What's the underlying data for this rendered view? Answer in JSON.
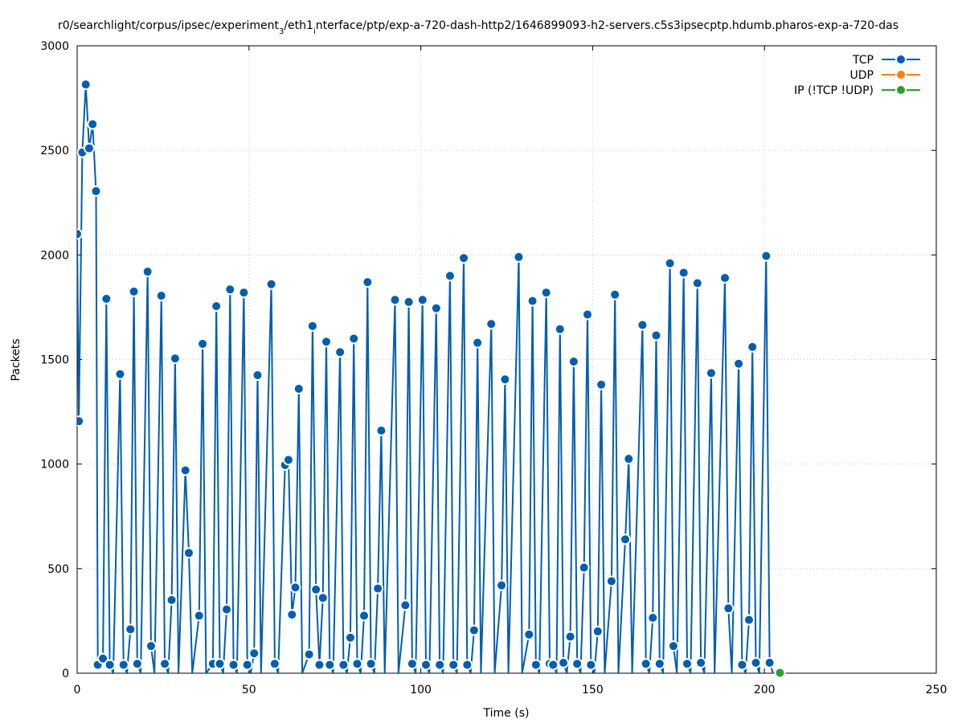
{
  "chart_data": {
    "type": "line",
    "title": "r0/searchlight/corpus/ipsec/experiment_3/eth1_interface/ptp/exp-a-720-dash-http2/1646899093-h2-servers.c5s3ipsecptp.hdumb.pharos-exp-a-720-das",
    "title_parts": {
      "part1": "r0/searchlight/corpus/ipsec/experiment",
      "sub1": "3",
      "part2": "/eth1",
      "sub2": "i",
      "part3": "nterface/ptp/exp-a-720-dash-http2/1646899093-h2-servers.c5s3ipsecptp.hdumb.pharos-exp-a-720-das"
    },
    "xlabel": "Time (s)",
    "ylabel": "Packets",
    "xlim": [
      0,
      250
    ],
    "ylim": [
      0,
      3000
    ],
    "xticks": [
      0,
      50,
      100,
      150,
      200,
      250
    ],
    "yticks": [
      0,
      500,
      1000,
      1500,
      2000,
      2500,
      3000
    ],
    "grid": true,
    "legend_position": "top-right",
    "series": [
      {
        "name": "TCP",
        "color": "#005eb0",
        "points": [
          [
            0,
            2100
          ],
          [
            0.5,
            1205
          ],
          [
            1.5,
            2490
          ],
          [
            2.5,
            2815
          ],
          [
            3.5,
            2510
          ],
          [
            4.5,
            2625
          ],
          [
            5.5,
            2305
          ],
          [
            6,
            40
          ],
          [
            7.5,
            70
          ],
          [
            8.5,
            1790
          ],
          [
            9.5,
            40
          ],
          [
            10.5,
            0
          ],
          [
            12.5,
            1430
          ],
          [
            13.5,
            40
          ],
          [
            14.5,
            0
          ],
          [
            15.5,
            210
          ],
          [
            16.5,
            1825
          ],
          [
            17.5,
            45
          ],
          [
            18.5,
            0
          ],
          [
            20.5,
            1920
          ],
          [
            21.5,
            130
          ],
          [
            22.5,
            0
          ],
          [
            24.5,
            1805
          ],
          [
            25.5,
            45
          ],
          [
            26.5,
            0
          ],
          [
            27.5,
            350
          ],
          [
            28.5,
            1505
          ],
          [
            29.5,
            0
          ],
          [
            31.5,
            970
          ],
          [
            32.5,
            575
          ],
          [
            33.5,
            0
          ],
          [
            35.5,
            275
          ],
          [
            36.5,
            1575
          ],
          [
            37.5,
            0
          ],
          [
            39.5,
            45
          ],
          [
            40.5,
            1755
          ],
          [
            41.5,
            45
          ],
          [
            42.5,
            0
          ],
          [
            43.5,
            305
          ],
          [
            44.5,
            1835
          ],
          [
            45.5,
            40
          ],
          [
            46.5,
            0
          ],
          [
            48.5,
            1820
          ],
          [
            49.5,
            40
          ],
          [
            50.5,
            0
          ],
          [
            51.5,
            95
          ],
          [
            52.5,
            1425
          ],
          [
            53.5,
            0
          ],
          [
            56.5,
            1860
          ],
          [
            57.5,
            45
          ],
          [
            58.5,
            0
          ],
          [
            60.5,
            995
          ],
          [
            61.5,
            1020
          ],
          [
            62.5,
            280
          ],
          [
            63.5,
            410
          ],
          [
            64.5,
            1360
          ],
          [
            65.5,
            0
          ],
          [
            67.5,
            90
          ],
          [
            68.5,
            1660
          ],
          [
            69.5,
            400
          ],
          [
            70.5,
            40
          ],
          [
            71.5,
            360
          ],
          [
            72.5,
            1585
          ],
          [
            73.5,
            40
          ],
          [
            74.5,
            0
          ],
          [
            76.5,
            1535
          ],
          [
            77.5,
            40
          ],
          [
            78.5,
            0
          ],
          [
            79.5,
            170
          ],
          [
            80.5,
            1600
          ],
          [
            81.5,
            45
          ],
          [
            82.5,
            0
          ],
          [
            83.5,
            275
          ],
          [
            84.5,
            1870
          ],
          [
            85.5,
            45
          ],
          [
            86.5,
            0
          ],
          [
            87.5,
            405
          ],
          [
            88.5,
            1160
          ],
          [
            89.5,
            0
          ],
          [
            92.5,
            1785
          ],
          [
            93.5,
            0
          ],
          [
            95.5,
            325
          ],
          [
            96.5,
            1775
          ],
          [
            97.5,
            45
          ],
          [
            98.5,
            0
          ],
          [
            100.5,
            1785
          ],
          [
            101.5,
            40
          ],
          [
            102.5,
            0
          ],
          [
            104.5,
            1745
          ],
          [
            105.5,
            40
          ],
          [
            106.5,
            0
          ],
          [
            108.5,
            1900
          ],
          [
            109.5,
            40
          ],
          [
            110.5,
            0
          ],
          [
            112.5,
            1985
          ],
          [
            113.5,
            40
          ],
          [
            114.5,
            0
          ],
          [
            115.5,
            205
          ],
          [
            116.5,
            1580
          ],
          [
            117.5,
            0
          ],
          [
            120.5,
            1670
          ],
          [
            121.5,
            0
          ],
          [
            123.5,
            420
          ],
          [
            124.5,
            1405
          ],
          [
            125.5,
            0
          ],
          [
            128.5,
            1990
          ],
          [
            129.5,
            0
          ],
          [
            131.5,
            185
          ],
          [
            132.5,
            1780
          ],
          [
            133.5,
            40
          ],
          [
            134.5,
            0
          ],
          [
            136.5,
            1820
          ],
          [
            137.5,
            45
          ],
          [
            138.5,
            40
          ],
          [
            139.5,
            0
          ],
          [
            140.5,
            1645
          ],
          [
            141.5,
            50
          ],
          [
            142.5,
            0
          ],
          [
            143.5,
            175
          ],
          [
            144.5,
            1490
          ],
          [
            145.5,
            45
          ],
          [
            146.5,
            0
          ],
          [
            147.5,
            505
          ],
          [
            148.5,
            1715
          ],
          [
            149.5,
            40
          ],
          [
            150.5,
            0
          ],
          [
            151.5,
            200
          ],
          [
            152.5,
            1380
          ],
          [
            153.5,
            0
          ],
          [
            155.5,
            440
          ],
          [
            156.5,
            1810
          ],
          [
            157.5,
            0
          ],
          [
            159.5,
            640
          ],
          [
            160.5,
            1025
          ],
          [
            161.5,
            0
          ],
          [
            164.5,
            1665
          ],
          [
            165.5,
            45
          ],
          [
            166.5,
            0
          ],
          [
            167.5,
            265
          ],
          [
            168.5,
            1615
          ],
          [
            169.5,
            45
          ],
          [
            170.5,
            0
          ],
          [
            172.5,
            1960
          ],
          [
            173.5,
            130
          ],
          [
            174.5,
            0
          ],
          [
            176.5,
            1915
          ],
          [
            177.5,
            45
          ],
          [
            178.5,
            0
          ],
          [
            180.5,
            1865
          ],
          [
            181.5,
            50
          ],
          [
            182.5,
            0
          ],
          [
            184.5,
            1435
          ],
          [
            185.5,
            0
          ],
          [
            188.5,
            1890
          ],
          [
            189.5,
            310
          ],
          [
            190.5,
            0
          ],
          [
            192.5,
            1480
          ],
          [
            193.5,
            40
          ],
          [
            194.5,
            0
          ],
          [
            195.5,
            255
          ],
          [
            196.5,
            1560
          ],
          [
            197.5,
            50
          ],
          [
            198.5,
            0
          ],
          [
            200.5,
            1995
          ],
          [
            201.5,
            50
          ],
          [
            202.5,
            0
          ]
        ]
      },
      {
        "name": "UDP",
        "color": "#ff7f0e",
        "points": []
      },
      {
        "name": "IP (!TCP  !UDP)",
        "color": "#2ca02c",
        "points": [
          [
            204.5,
            2
          ]
        ]
      }
    ]
  }
}
